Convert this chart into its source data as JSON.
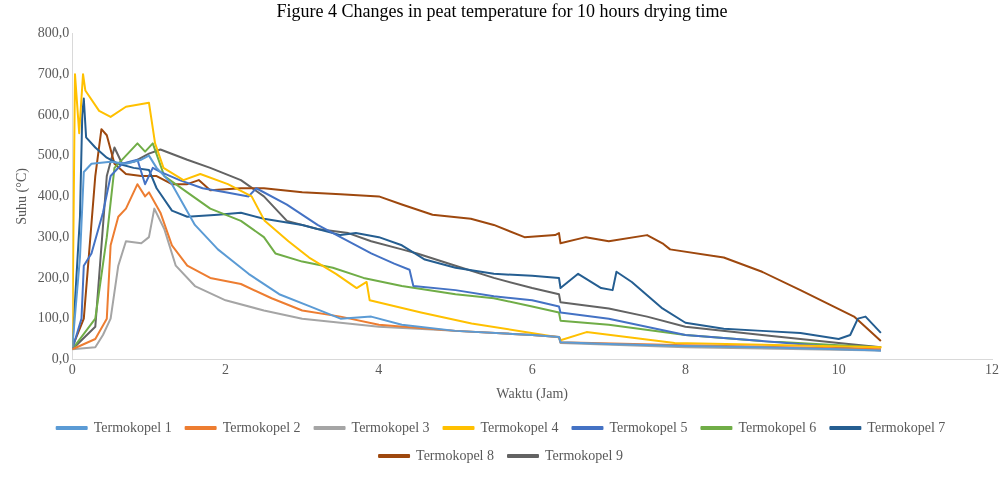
{
  "chart_data": {
    "type": "line",
    "title": "Figure 4 Changes in peat temperature for 10 hours drying time",
    "xlabel": "Waktu (Jam)",
    "ylabel": "Suhu (°C)",
    "xlim": [
      0,
      12
    ],
    "xticks": [
      0,
      2,
      4,
      6,
      8,
      10,
      12
    ],
    "ylim": [
      0,
      800
    ],
    "yticks": [
      {
        "value": 0,
        "label": "0,0"
      },
      {
        "value": 100,
        "label": "100,0"
      },
      {
        "value": 200,
        "label": "200,0"
      },
      {
        "value": 300,
        "label": "300,0"
      },
      {
        "value": 400,
        "label": "400,0"
      },
      {
        "value": 500,
        "label": "500,0"
      },
      {
        "value": 600,
        "label": "600,0"
      },
      {
        "value": 700,
        "label": "700,0"
      },
      {
        "value": 800,
        "label": "800,0"
      }
    ],
    "grid": false,
    "legend": "bottom",
    "marker": "none",
    "line_style": "solid",
    "series": [
      {
        "name": "Termokopel 1",
        "color": "#5b9bd5",
        "x": [
          0,
          0.1,
          0.15,
          0.25,
          0.5,
          0.7,
          0.9,
          1.0,
          1.1,
          1.3,
          1.6,
          1.9,
          2.3,
          2.7,
          3.1,
          3.5,
          3.9,
          4.3,
          5,
          6,
          6.35,
          6.37,
          7,
          8,
          9,
          10,
          10.55
        ],
        "values": [
          30,
          250,
          460,
          480,
          485,
          480,
          490,
          500,
          470,
          430,
          330,
          270,
          210,
          160,
          130,
          100,
          105,
          85,
          70,
          60,
          55,
          42,
          38,
          33,
          30,
          25,
          22
        ]
      },
      {
        "name": "Termokopel 2",
        "color": "#ed7d31",
        "x": [
          0,
          0.3,
          0.45,
          0.5,
          0.6,
          0.7,
          0.85,
          0.95,
          1.0,
          1.15,
          1.3,
          1.5,
          1.8,
          2.2,
          2.6,
          3,
          3.5,
          4,
          5,
          6,
          6.35,
          6.37,
          8,
          10.55
        ],
        "values": [
          25,
          50,
          100,
          280,
          350,
          370,
          430,
          400,
          410,
          360,
          280,
          230,
          200,
          185,
          150,
          120,
          105,
          85,
          70,
          60,
          55,
          42,
          35,
          25
        ]
      },
      {
        "name": "Termokopel 3",
        "color": "#a5a5a5",
        "x": [
          0,
          0.3,
          0.4,
          0.5,
          0.6,
          0.7,
          0.9,
          1.0,
          1.07,
          1.2,
          1.35,
          1.6,
          2,
          2.5,
          3,
          4,
          5,
          6,
          6.35,
          6.37,
          8,
          10.55
        ],
        "values": [
          25,
          30,
          60,
          100,
          230,
          290,
          285,
          300,
          370,
          320,
          230,
          180,
          145,
          120,
          100,
          80,
          70,
          60,
          55,
          40,
          30,
          22
        ]
      },
      {
        "name": "Termokopel 4",
        "color": "#ffc000",
        "x": [
          0,
          0.035,
          0.09,
          0.14,
          0.17,
          0.35,
          0.5,
          0.7,
          1.0,
          1.08,
          1.19,
          1.45,
          1.67,
          2.03,
          2.34,
          2.51,
          2.82,
          3.09,
          3.44,
          3.71,
          3.84,
          3.88,
          4.55,
          5.21,
          6.36,
          6.37,
          6.71,
          7.86,
          10.56
        ],
        "values": [
          30,
          700,
          555,
          700,
          660,
          610,
          595,
          620,
          630,
          530,
          470,
          440,
          455,
          430,
          400,
          340,
          290,
          250,
          210,
          175,
          190,
          145,
          115,
          88,
          54,
          47,
          67,
          40,
          30
        ]
      },
      {
        "name": "Termokopel 5",
        "color": "#4472c4",
        "x": [
          0,
          0.12,
          0.15,
          0.25,
          0.4,
          0.5,
          0.65,
          0.85,
          0.95,
          1.05,
          1.15,
          1.4,
          1.7,
          2.0,
          2.3,
          2.4,
          2.8,
          3.2,
          3.5,
          3.9,
          4.2,
          4.4,
          4.45,
          5,
          5.5,
          6,
          6.35,
          6.37,
          7,
          8,
          9,
          10,
          10.55
        ],
        "values": [
          25,
          100,
          230,
          260,
          360,
          450,
          480,
          490,
          430,
          470,
          460,
          440,
          420,
          410,
          400,
          420,
          380,
          330,
          300,
          260,
          235,
          220,
          180,
          170,
          155,
          145,
          130,
          115,
          100,
          60,
          45,
          30,
          22
        ]
      },
      {
        "name": "Termokopel 6",
        "color": "#70ad47",
        "x": [
          0,
          0.3,
          0.45,
          0.55,
          0.7,
          0.85,
          0.95,
          1.05,
          1.2,
          1.5,
          1.8,
          2.2,
          2.5,
          2.65,
          3,
          3.4,
          3.8,
          4.3,
          5,
          5.5,
          6,
          6.35,
          6.37,
          7,
          8,
          9,
          10,
          10.55
        ],
        "values": [
          25,
          100,
          300,
          470,
          500,
          530,
          510,
          530,
          450,
          410,
          370,
          340,
          300,
          260,
          240,
          225,
          200,
          180,
          160,
          150,
          130,
          115,
          95,
          85,
          60,
          45,
          35,
          30
        ]
      },
      {
        "name": "Termokopel 7",
        "color": "#255e91",
        "x": [
          0,
          0.1,
          0.13,
          0.15,
          0.18,
          0.3,
          0.45,
          0.6,
          0.8,
          1.0,
          1.1,
          1.3,
          1.5,
          1.9,
          2.2,
          2.5,
          3,
          3.5,
          3.7,
          4,
          4.3,
          4.6,
          5,
          5.5,
          6,
          6.35,
          6.37,
          6.6,
          6.9,
          7.05,
          7.1,
          7.3,
          7.7,
          8.0,
          8.5,
          9,
          9.5,
          10.0,
          10.15,
          10.25,
          10.35,
          10.55
        ],
        "values": [
          30,
          350,
          600,
          640,
          545,
          520,
          495,
          480,
          470,
          465,
          420,
          365,
          350,
          355,
          360,
          345,
          330,
          305,
          310,
          300,
          280,
          245,
          225,
          210,
          205,
          200,
          175,
          210,
          175,
          170,
          215,
          190,
          125,
          90,
          75,
          70,
          65,
          50,
          60,
          100,
          105,
          65
        ]
      },
      {
        "name": "Termokopel 8",
        "color": "#9e480e",
        "x": [
          0,
          0.15,
          0.3,
          0.38,
          0.45,
          0.55,
          0.7,
          0.9,
          1.1,
          1.3,
          1.5,
          1.65,
          1.8,
          2.2,
          2.5,
          3,
          3.5,
          4,
          4.3,
          4.7,
          5.2,
          5.5,
          5.9,
          6.3,
          6.35,
          6.37,
          6.7,
          7.0,
          7.5,
          7.7,
          7.8,
          8.5,
          9,
          9.5,
          10.2,
          10.55
        ],
        "values": [
          30,
          100,
          450,
          565,
          550,
          480,
          455,
          450,
          450,
          430,
          430,
          440,
          415,
          420,
          420,
          410,
          405,
          400,
          380,
          355,
          345,
          330,
          300,
          305,
          310,
          285,
          300,
          290,
          305,
          285,
          270,
          250,
          215,
          170,
          105,
          45
        ]
      },
      {
        "name": "Termokopel 9",
        "color": "#636363",
        "x": [
          0,
          0.3,
          0.45,
          0.55,
          0.65,
          0.8,
          1.0,
          1.15,
          1.5,
          1.8,
          2.2,
          2.5,
          2.8,
          3.2,
          3.6,
          3.9,
          4.3,
          4.5,
          5,
          5.5,
          6,
          6.35,
          6.37,
          7,
          7.5,
          8,
          9,
          10,
          10.55
        ],
        "values": [
          25,
          80,
          450,
          520,
          480,
          485,
          505,
          515,
          490,
          470,
          440,
          400,
          340,
          320,
          310,
          290,
          270,
          260,
          230,
          200,
          175,
          160,
          140,
          125,
          105,
          80,
          60,
          40,
          30
        ]
      }
    ]
  }
}
